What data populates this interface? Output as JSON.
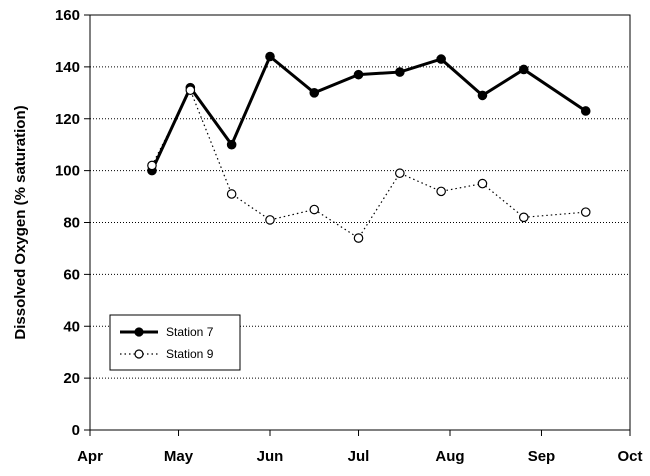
{
  "chart_data": {
    "type": "line",
    "title": "",
    "xlabel": "",
    "ylabel": "Dissolved Oxygen (% saturation)",
    "ylim": [
      0,
      160
    ],
    "yticks": [
      0,
      20,
      40,
      60,
      80,
      100,
      120,
      140,
      160
    ],
    "xlim": [
      "Apr",
      "Oct"
    ],
    "xticks": [
      "Apr",
      "May",
      "Jun",
      "Jul",
      "Aug",
      "Sep",
      "Oct"
    ],
    "grid": "horizontal dotted",
    "legend_position": "bottom-left",
    "series": [
      {
        "name": "Station 7",
        "style": "solid thick line, filled circles",
        "color": "#000000",
        "points": [
          {
            "x": "Apr 22",
            "y": 100
          },
          {
            "x": "May 5",
            "y": 132
          },
          {
            "x": "May 19",
            "y": 110
          },
          {
            "x": "Jun 1",
            "y": 144
          },
          {
            "x": "Jun 16",
            "y": 130
          },
          {
            "x": "Jul 1",
            "y": 137
          },
          {
            "x": "Jul 15",
            "y": 138
          },
          {
            "x": "Jul 29",
            "y": 143
          },
          {
            "x": "Aug 12",
            "y": 129
          },
          {
            "x": "Aug 26",
            "y": 139
          },
          {
            "x": "Sep 16",
            "y": 123
          }
        ]
      },
      {
        "name": "Station 9",
        "style": "dotted thin line, open circles",
        "color": "#000000",
        "points": [
          {
            "x": "Apr 22",
            "y": 102
          },
          {
            "x": "May 5",
            "y": 131
          },
          {
            "x": "May 19",
            "y": 91
          },
          {
            "x": "Jun 1",
            "y": 81
          },
          {
            "x": "Jun 16",
            "y": 85
          },
          {
            "x": "Jul 1",
            "y": 74
          },
          {
            "x": "Jul 15",
            "y": 99
          },
          {
            "x": "Jul 29",
            "y": 92
          },
          {
            "x": "Aug 12",
            "y": 95
          },
          {
            "x": "Aug 26",
            "y": 82
          },
          {
            "x": "Sep 16",
            "y": 84
          }
        ]
      }
    ]
  }
}
